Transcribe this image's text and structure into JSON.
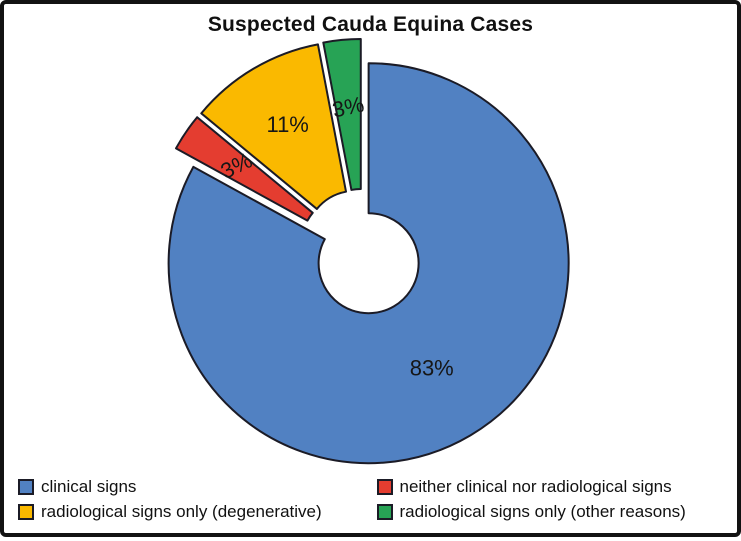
{
  "chart_data": {
    "type": "pie",
    "subtype": "exploded-donut",
    "title": "Suspected Cauda Equina Cases",
    "unit": "%",
    "total": 100,
    "legend_position": "bottom-two-columns",
    "slices": [
      {
        "label": "clinical signs",
        "value": 83,
        "display": "83%",
        "color": "#5181C2"
      },
      {
        "label": "neither clinical nor radiological signs",
        "value": 3,
        "display": "3%",
        "color": "#E43D30"
      },
      {
        "label": "radiological signs only (degenerative)",
        "value": 11,
        "display": "11%",
        "color": "#FAB900"
      },
      {
        "label": "radiological signs only (other reasons)",
        "value": 3,
        "display": "3%",
        "color": "#27A355"
      }
    ],
    "colors": {
      "outline": "#1b1b26",
      "label_text": "#161616",
      "title_text": "#111111"
    }
  }
}
